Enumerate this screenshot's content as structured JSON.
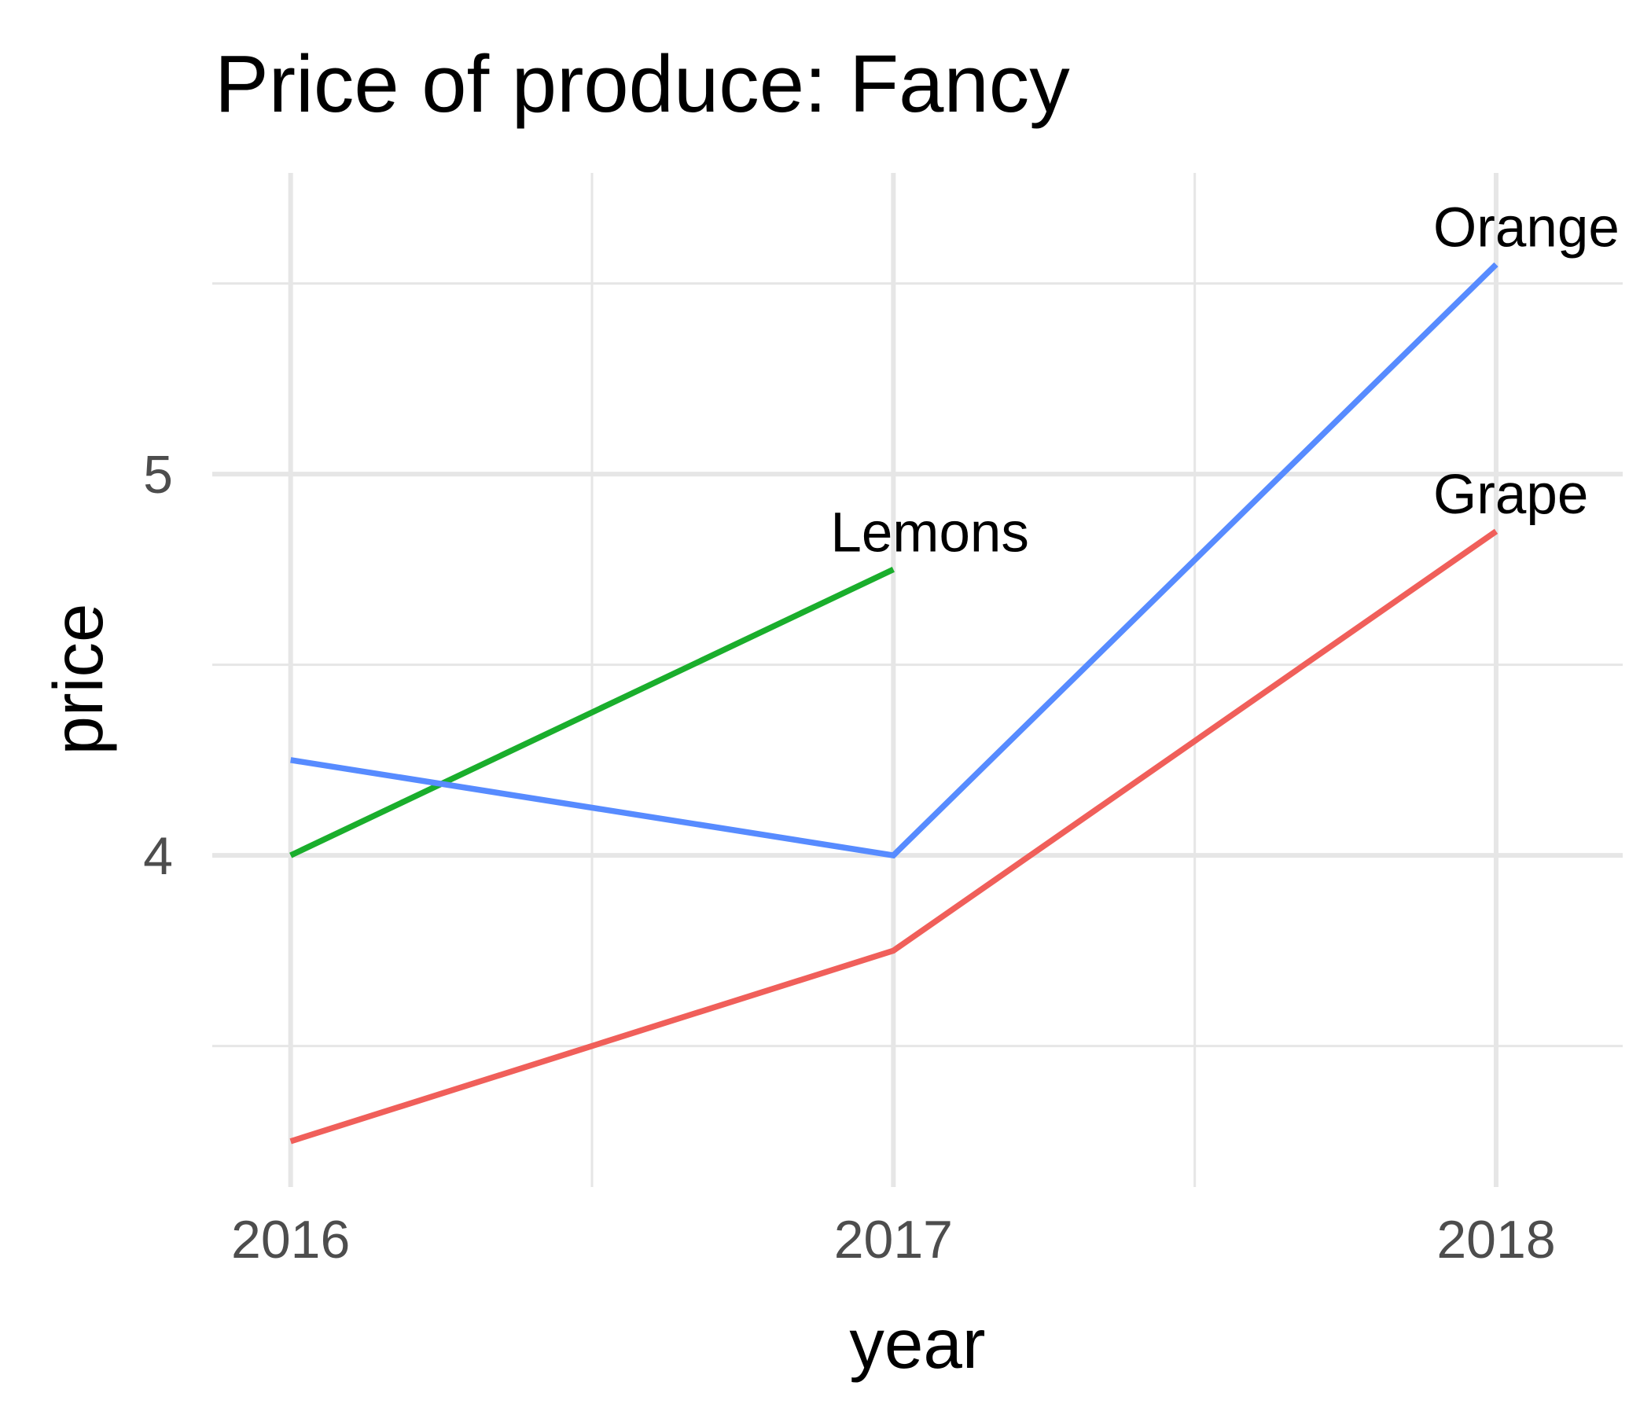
{
  "chart_data": {
    "type": "line",
    "title": "Price of produce: Fancy",
    "xlabel": "year",
    "ylabel": "price",
    "x": [
      2016,
      2017,
      2018
    ],
    "x_ticks": [
      "2016",
      "2017",
      "2018"
    ],
    "y_ticks": [
      "4",
      "5"
    ],
    "xlim": [
      2015.87,
      2018.21
    ],
    "ylim": [
      3.13,
      5.79
    ],
    "grid": true,
    "legend": "none",
    "series": [
      {
        "name": "Grapes",
        "label_text": "Grape",
        "color": "#f05f5a",
        "values": [
          3.25,
          3.75,
          4.85
        ]
      },
      {
        "name": "Lemons",
        "label_text": "Lemons",
        "color": "#1aae2c",
        "values": [
          4.0,
          4.75,
          null
        ]
      },
      {
        "name": "Oranges",
        "label_text": "Orange",
        "color": "#578bff",
        "values": [
          4.25,
          4.0,
          5.55
        ]
      }
    ]
  }
}
